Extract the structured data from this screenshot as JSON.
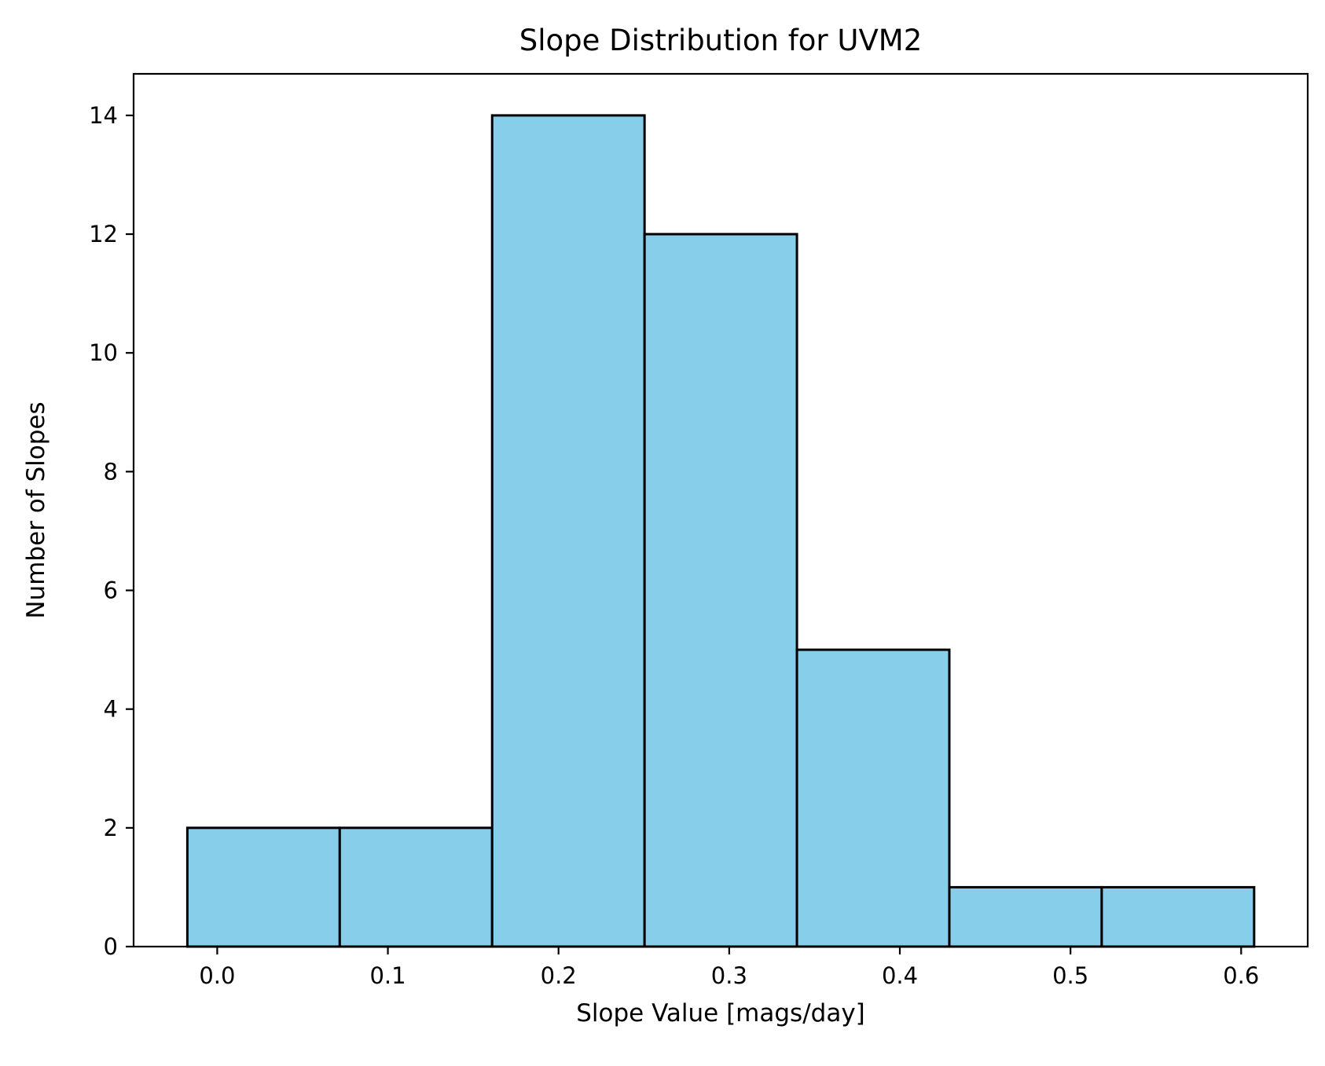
{
  "chart_data": {
    "type": "bar",
    "title": "Slope Distribution for UVM2",
    "xlabel": "Slope Value [mags/day]",
    "ylabel": "Number of Slopes",
    "bin_edges": [
      -0.0175,
      0.0718,
      0.1611,
      0.2504,
      0.3397,
      0.429,
      0.5183,
      0.6076
    ],
    "values": [
      2,
      2,
      14,
      12,
      5,
      1,
      1
    ],
    "xlim": [
      -0.049,
      0.639
    ],
    "ylim": [
      0,
      14.7
    ],
    "xticks": [
      0.0,
      0.1,
      0.2,
      0.3,
      0.4,
      0.5,
      0.6
    ],
    "xtick_labels": [
      "0.0",
      "0.1",
      "0.2",
      "0.3",
      "0.4",
      "0.5",
      "0.6"
    ],
    "yticks": [
      0,
      2,
      4,
      6,
      8,
      10,
      12,
      14
    ],
    "ytick_labels": [
      "0",
      "2",
      "4",
      "6",
      "8",
      "10",
      "12",
      "14"
    ],
    "bar_color": "#87ceeb",
    "edge_color": "#000000",
    "grid": false,
    "legend": "none"
  }
}
